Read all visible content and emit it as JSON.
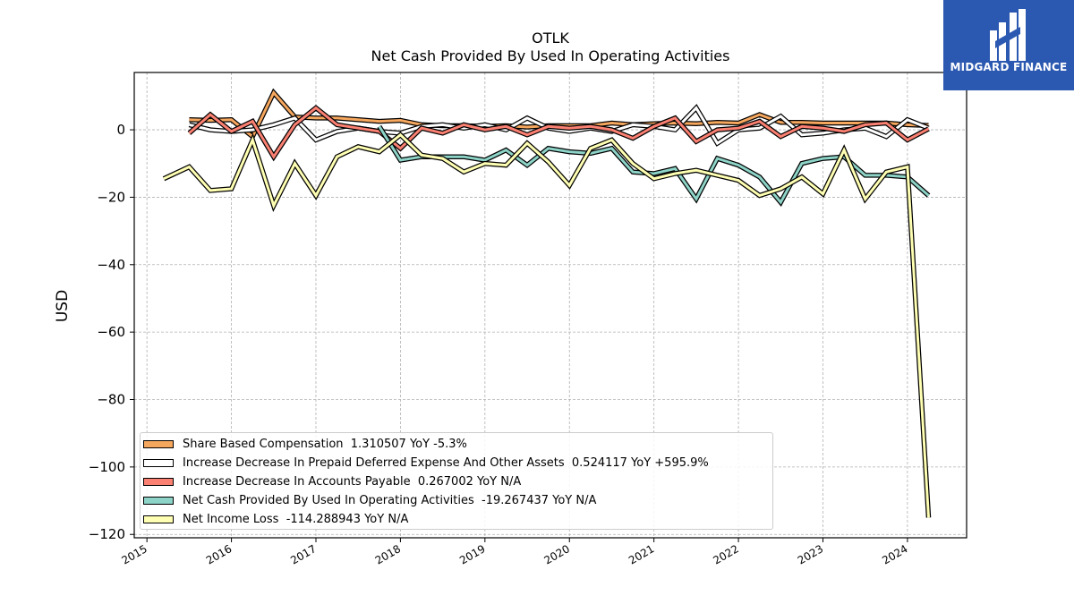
{
  "chart_data": {
    "type": "line",
    "title": "OTLK",
    "subtitle": "Net Cash Provided By Used In Operating Activities",
    "xlabel": "",
    "ylabel": "USD",
    "xlim": [
      2014.85,
      2024.7
    ],
    "ylim": [
      -121,
      17
    ],
    "x_ticks": [
      "2015",
      "2016",
      "2017",
      "2018",
      "2019",
      "2020",
      "2021",
      "2022",
      "2023",
      "2024"
    ],
    "y_ticks": [
      0,
      -20,
      -40,
      -60,
      -80,
      -100,
      -120
    ],
    "y_tick_labels": [
      "0",
      "−20",
      "−40",
      "−60",
      "−80",
      "−100",
      "−120"
    ],
    "grid": true,
    "legend_position": "bottom-left",
    "series": [
      {
        "name": "Share Based Compensation  1.310507 YoY -5.3%",
        "color": "#f6a75e",
        "x": [
          2015.5,
          2015.75,
          2016.0,
          2016.25,
          2016.5,
          2016.75,
          2017.0,
          2017.25,
          2017.5,
          2017.75,
          2018.0,
          2018.25,
          2018.5,
          2018.75,
          2019.0,
          2019.25,
          2019.5,
          2019.75,
          2020.0,
          2020.25,
          2020.5,
          2020.75,
          2021.0,
          2021.25,
          2021.5,
          2021.75,
          2022.0,
          2022.25,
          2022.5,
          2022.75,
          2023.0,
          2023.25,
          2023.5,
          2023.75,
          2024.0,
          2024.25
        ],
        "values": [
          3,
          2.8,
          3,
          -2,
          11,
          3.8,
          3.5,
          3.5,
          3,
          2.5,
          2.8,
          1.5,
          1.2,
          1.2,
          1,
          1.2,
          0.8,
          1.2,
          1.2,
          1.2,
          2,
          1.5,
          1.8,
          2,
          1.8,
          2.2,
          2,
          4.5,
          2.2,
          2.2,
          2,
          2,
          2,
          2,
          1.5,
          1.3
        ]
      },
      {
        "name": "Increase Decrease In Prepaid Deferred Expense And Other Assets  0.524117 YoY +595.9%",
        "color": "#ffffff",
        "x": [
          2015.5,
          2015.75,
          2016.0,
          2016.25,
          2016.5,
          2016.75,
          2017.0,
          2017.25,
          2017.5,
          2017.75,
          2018.0,
          2018.25,
          2018.5,
          2018.75,
          2019.0,
          2019.25,
          2019.5,
          2019.75,
          2020.0,
          2020.25,
          2020.5,
          2020.75,
          2021.0,
          2021.25,
          2021.5,
          2021.75,
          2022.0,
          2022.25,
          2022.5,
          2022.75,
          2023.0,
          2023.25,
          2023.5,
          2023.75,
          2024.0,
          2024.25
        ],
        "values": [
          1.5,
          0,
          -0.5,
          0,
          1.5,
          3.5,
          -3,
          -0.5,
          0.5,
          -0.5,
          -1,
          1,
          1.5,
          0.5,
          1.5,
          0,
          3.5,
          0.5,
          -0.5,
          0.5,
          -0.5,
          1.5,
          1,
          0,
          6.5,
          -4,
          0,
          0.5,
          4,
          -1.5,
          -1,
          0,
          0.5,
          -2,
          3,
          0.5
        ]
      },
      {
        "name": "Increase Decrease In Accounts Payable  0.267002 YoY N/A",
        "color": "#fa8072",
        "x": [
          2015.5,
          2015.75,
          2016.0,
          2016.25,
          2016.5,
          2016.75,
          2017.0,
          2017.25,
          2017.5,
          2017.75,
          2018.0,
          2018.25,
          2018.5,
          2018.75,
          2019.0,
          2019.25,
          2019.5,
          2019.75,
          2020.0,
          2020.25,
          2020.5,
          2020.75,
          2021.0,
          2021.25,
          2021.5,
          2021.75,
          2022.0,
          2022.25,
          2022.5,
          2022.75,
          2023.0,
          2023.25,
          2023.5,
          2023.75,
          2024.0,
          2024.25
        ],
        "values": [
          -1,
          4.5,
          -0.5,
          2.5,
          -8,
          1.5,
          6.5,
          1.5,
          0.5,
          -0.5,
          -5.5,
          0.5,
          -1,
          1.5,
          0,
          1,
          -1.5,
          1,
          0.5,
          1,
          0,
          -2.5,
          1,
          3.5,
          -3.5,
          0,
          0.5,
          2.5,
          -2,
          1,
          0.5,
          -0.5,
          1.5,
          2,
          -3,
          0.3
        ]
      },
      {
        "name": "Net Cash Provided By Used In Operating Activities  -19.267437 YoY N/A",
        "color": "#8dd3c7",
        "x": [
          2017.75,
          2018.0,
          2018.25,
          2018.5,
          2018.75,
          2019.0,
          2019.25,
          2019.5,
          2019.75,
          2020.0,
          2020.25,
          2020.5,
          2020.75,
          2021.0,
          2021.25,
          2021.5,
          2021.75,
          2022.0,
          2022.25,
          2022.5,
          2022.75,
          2023.0,
          2023.25,
          2023.5,
          2023.75,
          2024.0,
          2024.25
        ],
        "values": [
          1,
          -9,
          -8,
          -8,
          -8,
          -9,
          -6,
          -10.5,
          -5.5,
          -6.5,
          -7,
          -5.5,
          -12.5,
          -13,
          -11.5,
          -20.5,
          -8.5,
          -10.5,
          -14,
          -21.5,
          -10,
          -8.5,
          -8,
          -13.5,
          -13.5,
          -14,
          -19.5
        ]
      },
      {
        "name": "Net Income Loss  -114.288943 YoY N/A",
        "color": "#ffffb3",
        "x": [
          2015.2,
          2015.5,
          2015.75,
          2016.0,
          2016.25,
          2016.5,
          2016.75,
          2017.0,
          2017.25,
          2017.5,
          2017.75,
          2018.0,
          2018.25,
          2018.5,
          2018.75,
          2019.0,
          2019.25,
          2019.5,
          2019.75,
          2020.0,
          2020.25,
          2020.5,
          2020.75,
          2021.0,
          2021.25,
          2021.5,
          2021.75,
          2022.0,
          2022.25,
          2022.5,
          2022.75,
          2023.0,
          2023.25,
          2023.5,
          2023.75,
          2024.0,
          2024.25
        ],
        "values": [
          -14.5,
          -11,
          -18,
          -17.5,
          -3,
          -22.5,
          -10,
          -19.5,
          -8,
          -5,
          -6.5,
          -1.5,
          -7.5,
          -8.5,
          -12.5,
          -10,
          -10.5,
          -4,
          -9.5,
          -16.5,
          -5.5,
          -3,
          -10,
          -14.5,
          -13,
          -12,
          -13.5,
          -15,
          -19.5,
          -17.5,
          -14,
          -19,
          -6,
          -20.5,
          -12.5,
          -11,
          -115
        ]
      }
    ]
  },
  "legend": {
    "items": [
      "Share Based Compensation  1.310507 YoY -5.3%",
      "Increase Decrease In Prepaid Deferred Expense And Other Assets  0.524117 YoY +595.9%",
      "Increase Decrease In Accounts Payable  0.267002 YoY N/A",
      "Net Cash Provided By Used In Operating Activities  -19.267437 YoY N/A",
      "Net Income Loss  -114.288943 YoY N/A"
    ]
  },
  "logo": {
    "text": "MIDGARD FINANCE"
  }
}
